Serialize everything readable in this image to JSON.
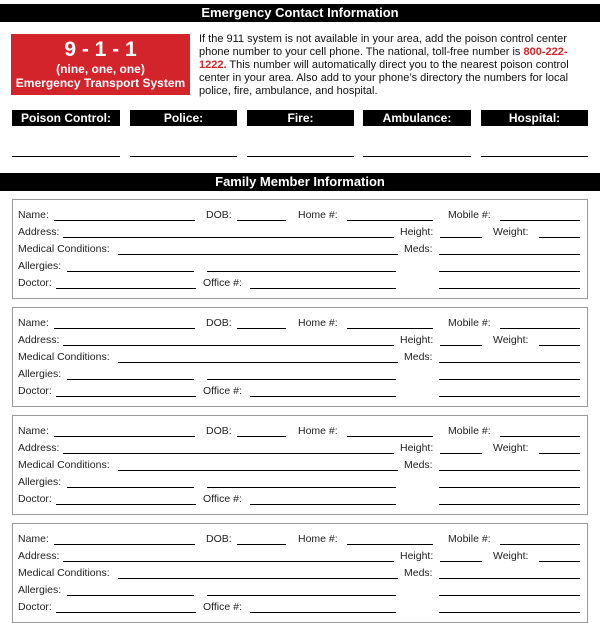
{
  "emergency_header": "Emergency Contact Information",
  "badge": {
    "number": "9 - 1 - 1",
    "spoken": "(nine, one, one)",
    "system": "Emergency Transport System"
  },
  "intro": {
    "before": "If the 911 system is not available in your area, add the poison control center phone number to your cell phone. The national, toll-free number is ",
    "phone": "800-222-1222.",
    "after": " This number will automatically direct you to the nearest poison control center in your area. Also add to your phone’s directory the numbers for local police, fire, ambulance, and hospital."
  },
  "contacts": [
    "Poison Control:",
    "Police:",
    "Fire:",
    "Ambulance:",
    "Hospital:"
  ],
  "family_header": "Family Member Information",
  "field_labels": {
    "name": "Name:",
    "dob": "DOB:",
    "home": "Home #:",
    "mobile": "Mobile #:",
    "address": "Address:",
    "height": "Height:",
    "weight": "Weight:",
    "conditions": "Medical Conditions:",
    "meds": "Meds:",
    "allergies": "Allergies:",
    "doctor": "Doctor:",
    "office": "Office #:"
  },
  "family_member_count": 4,
  "colors": {
    "accent": "#d4242b",
    "bar": "#000000"
  }
}
